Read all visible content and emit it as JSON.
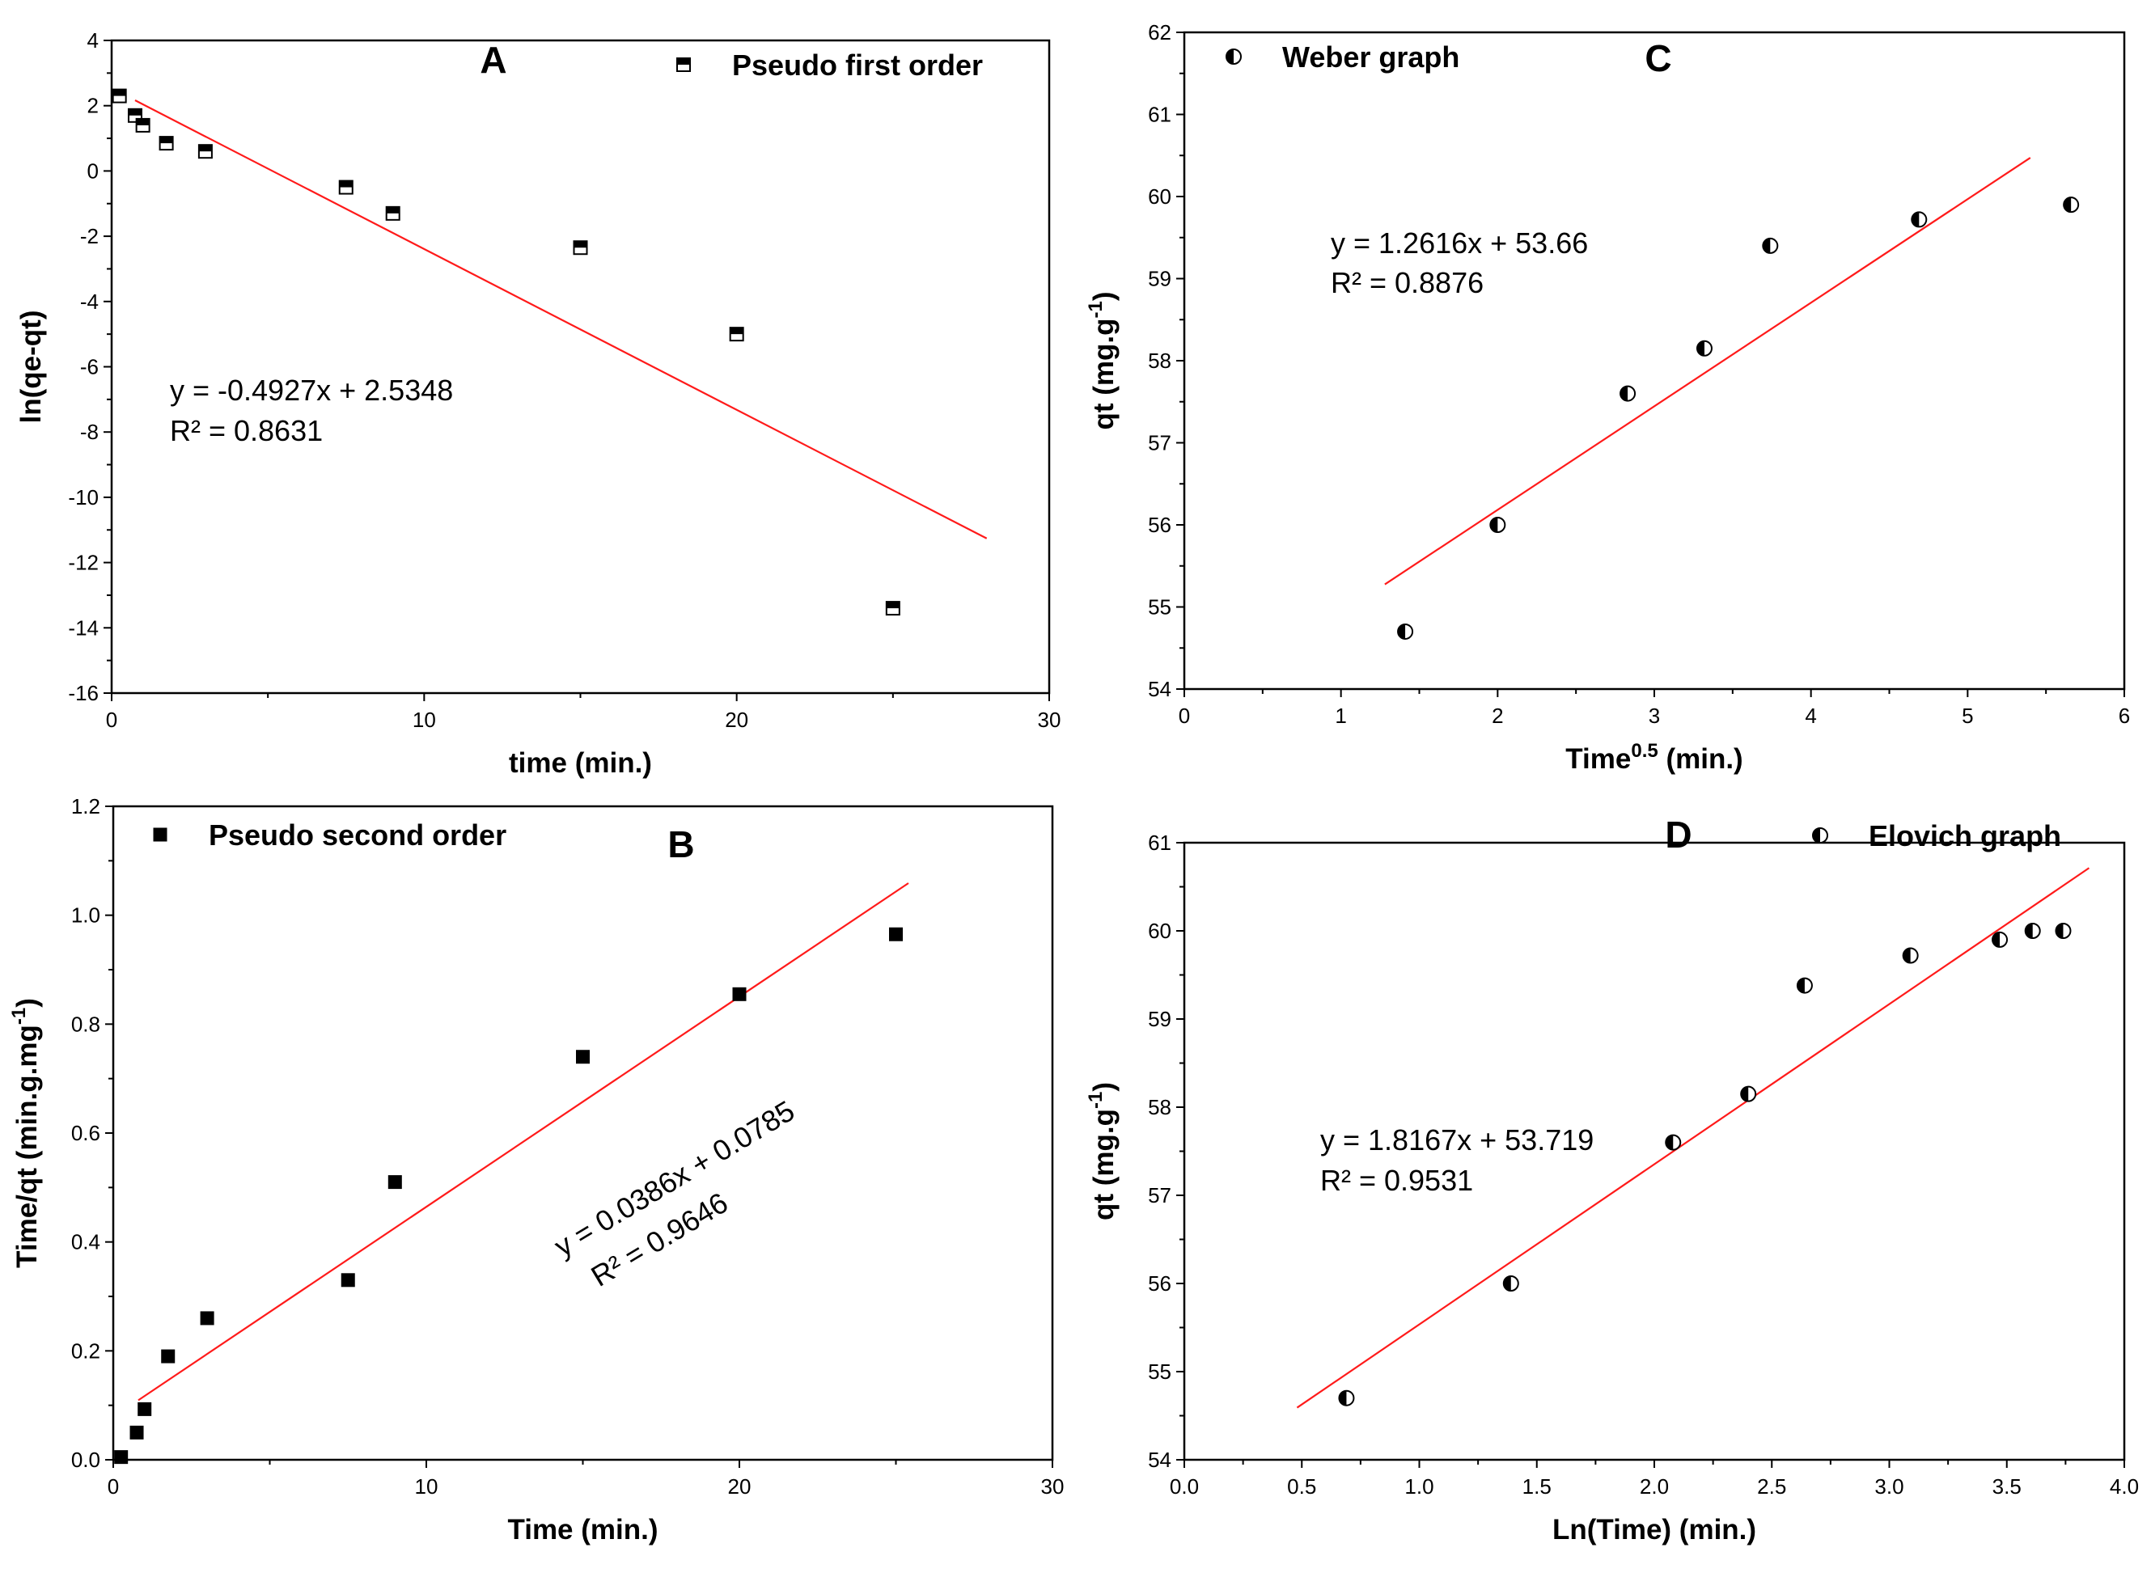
{
  "chart_data": [
    {
      "id": "A",
      "type": "scatter",
      "panel_label": "A",
      "xlabel": "time (min.)",
      "ylabel": "ln(qe-qt)",
      "xlim": [
        0,
        30
      ],
      "ylim": [
        -16,
        4
      ],
      "x_ticks": [
        0,
        10,
        20,
        30
      ],
      "y_ticks": [
        -16,
        -14,
        -12,
        -10,
        -8,
        -6,
        -4,
        -2,
        0,
        2,
        4
      ],
      "legend": "Pseudo first order",
      "marker": "half-square",
      "series": [
        {
          "name": "Pseudo first order",
          "x": [
            0.25,
            0.75,
            1,
            1.75,
            3,
            7.5,
            9,
            15,
            20,
            25
          ],
          "y": [
            2.3,
            1.7,
            1.4,
            0.85,
            0.6,
            -0.5,
            -1.3,
            -2.35,
            -5.0,
            -13.4
          ]
        }
      ],
      "fit": {
        "slope": -0.4927,
        "intercept": 2.5348,
        "x_range": [
          0.75,
          28
        ]
      },
      "equation": "y = -0.4927x + 2.5348",
      "r2": "R² = 0.8631"
    },
    {
      "id": "B",
      "type": "scatter",
      "panel_label": "B",
      "xlabel": "Time (min.)",
      "ylabel": "Time/qt (min.g.mg",
      "ylabel_sup": "-1",
      "ylabel_end": ")",
      "xlim": [
        0,
        30
      ],
      "ylim": [
        0,
        1.2
      ],
      "x_ticks": [
        0,
        10,
        20,
        30
      ],
      "y_ticks": [
        "0.0",
        "0.2",
        "0.4",
        "0.6",
        "0.8",
        "1.0",
        "1.2"
      ],
      "legend": "Pseudo second order",
      "marker": "square",
      "series": [
        {
          "name": "Pseudo second order",
          "x": [
            0.25,
            0.75,
            1,
            1.75,
            3,
            7.5,
            9,
            15,
            20,
            25
          ],
          "y": [
            0.005,
            0.05,
            0.093,
            0.19,
            0.26,
            0.33,
            0.51,
            0.74,
            0.855,
            0.965
          ]
        }
      ],
      "fit": {
        "slope": 0.0386,
        "intercept": 0.0785,
        "x_range": [
          0.8,
          25.4
        ]
      },
      "equation": "y = 0.0386x + 0.0785",
      "r2": "R² = 0.9646"
    },
    {
      "id": "C",
      "type": "scatter",
      "panel_label": "C",
      "xlabel": "Time",
      "xlabel_sup": "0.5",
      "xlabel_end": " (min.)",
      "ylabel": "qt (mg.g",
      "ylabel_sup": "-1",
      "ylabel_end": ")",
      "xlim": [
        0,
        6
      ],
      "ylim": [
        54,
        62
      ],
      "x_ticks": [
        0,
        1,
        2,
        3,
        4,
        5,
        6
      ],
      "y_ticks": [
        54,
        55,
        56,
        57,
        58,
        59,
        60,
        61,
        62
      ],
      "legend": "Weber graph",
      "marker": "half-circle",
      "series": [
        {
          "name": "Weber graph",
          "x": [
            1.41,
            2.0,
            2.83,
            3.32,
            3.74,
            4.69,
            5.66
          ],
          "y": [
            54.7,
            56.0,
            57.6,
            58.15,
            59.4,
            59.72,
            59.9
          ]
        }
      ],
      "fit": {
        "slope": 1.2616,
        "intercept": 53.66,
        "x_range": [
          1.28,
          5.4
        ]
      },
      "equation": "y = 1.2616x + 53.66",
      "r2": "R² = 0.8876"
    },
    {
      "id": "D",
      "type": "scatter",
      "panel_label": "D",
      "xlabel": "Ln(Time) (min.)",
      "ylabel": "qt (mg.g",
      "ylabel_sup": "-1",
      "ylabel_end": ")",
      "xlim": [
        0,
        4
      ],
      "ylim": [
        54,
        61
      ],
      "x_ticks": [
        "0.0",
        "0.5",
        "1.0",
        "1.5",
        "2.0",
        "2.5",
        "3.0",
        "3.5",
        "4.0"
      ],
      "y_ticks": [
        54,
        55,
        56,
        57,
        58,
        59,
        60,
        61
      ],
      "legend": "Elovich graph",
      "marker": "half-circle",
      "series": [
        {
          "name": "Elovich graph",
          "x": [
            0.69,
            1.39,
            2.08,
            2.4,
            2.64,
            3.09,
            3.47,
            3.61,
            3.74
          ],
          "y": [
            54.7,
            56.0,
            57.6,
            58.15,
            59.38,
            59.72,
            59.9,
            60.0,
            60.0
          ]
        }
      ],
      "fit": {
        "slope": 1.8167,
        "intercept": 53.719,
        "x_range": [
          0.48,
          3.85
        ]
      },
      "equation": "y = 1.8167x + 53.719",
      "r2": "R² = 0.9531"
    }
  ],
  "colors": {
    "fit_line": "#ff1a1a",
    "marker": "#000000",
    "axis": "#000000"
  }
}
